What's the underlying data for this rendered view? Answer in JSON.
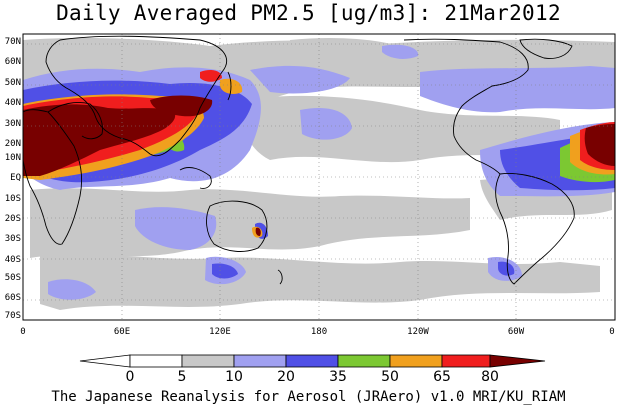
{
  "title": "Daily Averaged PM2.5 [ug/m3]: 21Mar2012",
  "footer": "The Japanese Reanalysis for Aerosol (JRAero) v1.0 MRI/KU_RIAM",
  "map": {
    "lat_labels": [
      "70N",
      "60N",
      "50N",
      "40N",
      "30N",
      "20N",
      "10N",
      "EQ",
      "10S",
      "20S",
      "30S",
      "40S",
      "50S",
      "60S",
      "70S"
    ],
    "lon_labels": [
      "0",
      "60E",
      "120E",
      "180",
      "120W",
      "60W",
      "0"
    ]
  },
  "legend": {
    "ticks": [
      "0",
      "5",
      "10",
      "20",
      "35",
      "50",
      "65",
      "80"
    ],
    "colors": [
      "#ffffff",
      "#c8c8c8",
      "#a0a0f0",
      "#5050e6",
      "#7cc832",
      "#f0a01e",
      "#f01e1e",
      "#780000"
    ]
  }
}
